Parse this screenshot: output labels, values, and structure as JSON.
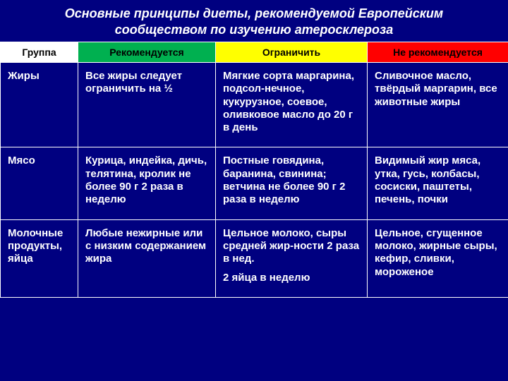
{
  "title_line1": "Основные принципы диеты, рекомендуемой Европейским",
  "title_line2": "сообществом по изучению атеросклероза",
  "title_fontsize": 18,
  "headers": {
    "group": "Группа",
    "recommended": "Рекомендуется",
    "limit": "Ограничить",
    "not_recommended": "Не рекомендуется"
  },
  "header_colors": {
    "group": "#ffffff",
    "recommended": "#00b050",
    "limit": "#ffff00",
    "not_recommended": "#ff0000"
  },
  "header_text_color": "#000000",
  "background_color": "#000080",
  "text_color": "#ffffff",
  "border_color": "#ffffff",
  "body_fontsize": 15,
  "header_fontsize": 14,
  "rows": [
    {
      "group": "Жиры",
      "recommended": "Все жиры следует ограничить на ½",
      "limit": "Мягкие сорта маргарина, подсол-нечное, кукурузное, соевое, оливковое масло до 20 г в день",
      "not_recommended": "Сливочное масло, твёрдый маргарин, все животные жиры"
    },
    {
      "group": "Мясо",
      "recommended": "Курица, индейка, дичь, телятина, кролик не более 90 г  2 раза в неделю",
      "limit": "Постные говядина, баранина, свинина; ветчина не более 90 г 2 раза в неделю",
      "not_recommended": "Видимый жир мяса, утка, гусь, колбасы, сосиски, паштеты, печень, почки"
    },
    {
      "group": "Молочные продукты, яйца",
      "recommended": "Любые нежирные или с низким содержанием жира",
      "limit": "Цельное молоко, сыры средней жир-ности 2 раза в нед.",
      "limit2": "2 яйца в неделю",
      "not_recommended": "Цельное, сгущенное молоко, жирные сыры, кефир, сливки, мороженое"
    }
  ]
}
